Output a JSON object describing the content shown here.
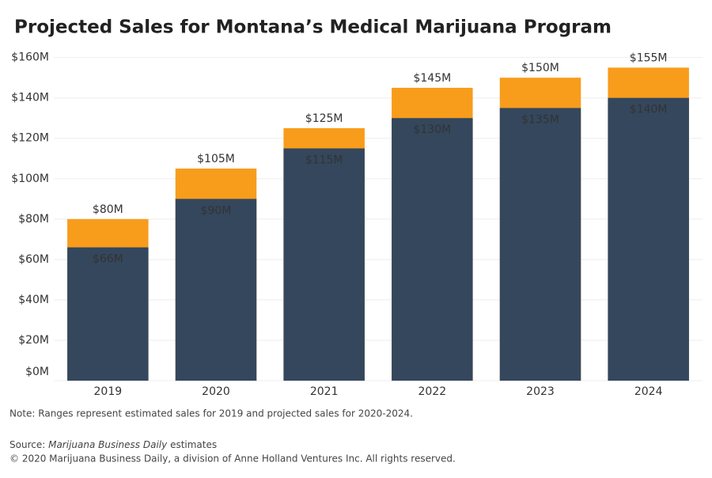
{
  "chart_data": {
    "type": "bar",
    "title": "Projected Sales for Montana’s Medical Marijuana Program",
    "categories": [
      "2019",
      "2020",
      "2021",
      "2022",
      "2023",
      "2024"
    ],
    "series": [
      {
        "color": "#f89c1c",
        "values": [
          80,
          105,
          125,
          145,
          150,
          155
        ],
        "value_labels": [
          "$80M",
          "$105M",
          "$125M",
          "$145M",
          "$150M",
          "$155M"
        ]
      },
      {
        "color": "#34475d",
        "values": [
          66,
          90,
          115,
          130,
          135,
          140
        ],
        "value_labels": [
          "$66M",
          "$90M",
          "$115M",
          "$130M",
          "$135M",
          "$140M"
        ]
      }
    ],
    "ylim": [
      0,
      163
    ],
    "yticks": [
      {
        "value": 0,
        "label": "$0M"
      },
      {
        "value": 20,
        "label": "$20M"
      },
      {
        "value": 40,
        "label": "$40M"
      },
      {
        "value": 60,
        "label": "$60M"
      },
      {
        "value": 80,
        "label": "$80M"
      },
      {
        "value": 100,
        "label": "$100M"
      },
      {
        "value": 120,
        "label": "$120M"
      },
      {
        "value": 140,
        "label": "$140M"
      },
      {
        "value": 160,
        "label": "$160M"
      }
    ],
    "grid": true,
    "note": "Note: Ranges represent estimated sales for 2019 and projected sales for 2020-2024.",
    "source_label": "Source:",
    "source_name": "Marijuana Business Daily",
    "source_suffix": "estimates",
    "copyright": "© 2020 Marijuana Business Daily, a division of Anne Holland Ventures Inc. All rights reserved."
  }
}
